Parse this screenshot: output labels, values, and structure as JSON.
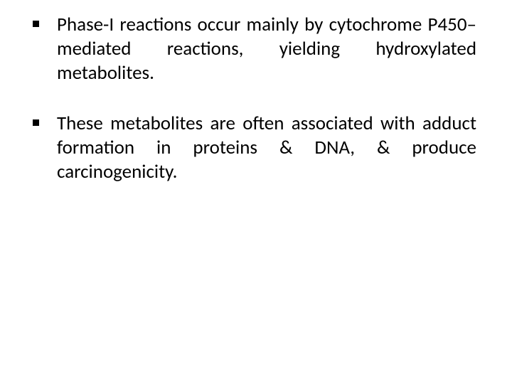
{
  "slide": {
    "background_color": "#ffffff",
    "text_color": "#000000",
    "font_size": 27,
    "bullet_style": "square",
    "bullet_color": "#000000",
    "bullets": [
      {
        "text": "Phase-I reactions occur mainly by cytochrome P450–mediated reactions, yielding hydroxylated metabolites."
      },
      {
        "text": "These metabolites are often associated with adduct formation in proteins & DNA, & produce carcinogenicity."
      }
    ]
  }
}
